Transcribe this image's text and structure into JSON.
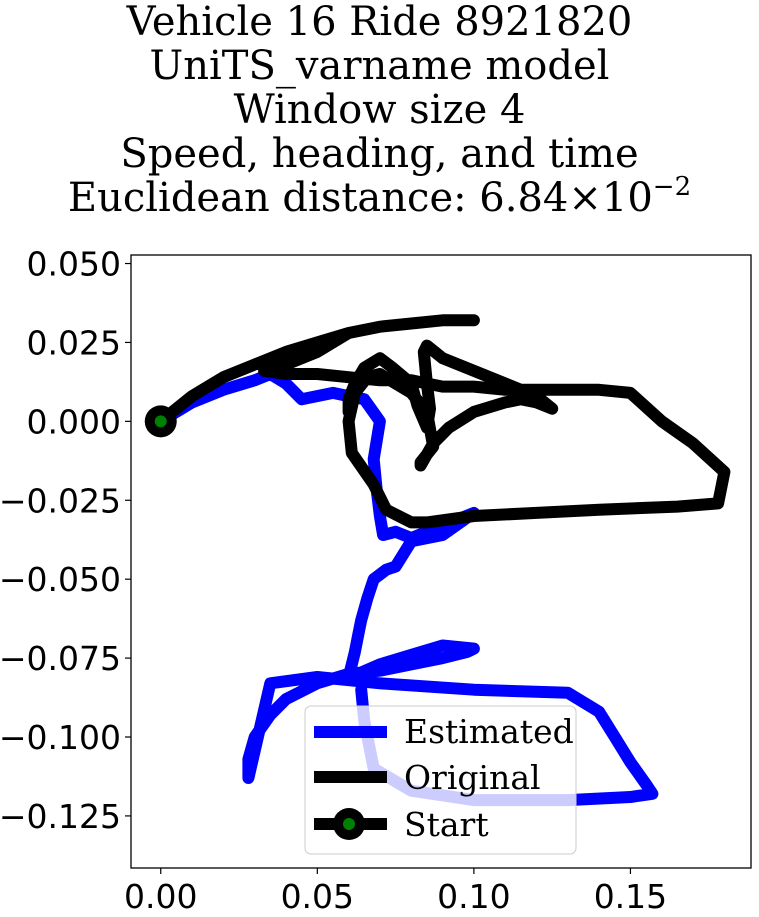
{
  "chart_data": {
    "type": "line",
    "title_lines": [
      "Vehicle 16 Ride 8921820",
      "UniTS_varname model",
      "Window size 4",
      "Speed, heading, and time"
    ],
    "title_distance_prefix": "Euclidean distance: 6.84",
    "title_distance_times": "×",
    "title_distance_base": "10",
    "title_distance_exponent": "−2",
    "xlim": [
      -0.0095,
      0.1885
    ],
    "ylim": [
      -0.1415,
      0.0527
    ],
    "x_ticks": [
      0.0,
      0.05,
      0.1,
      0.15
    ],
    "x_tick_labels": [
      "0.00",
      "0.05",
      "0.10",
      "0.15"
    ],
    "y_ticks": [
      0.05,
      0.025,
      0.0,
      -0.025,
      -0.05,
      -0.075,
      -0.1,
      -0.125
    ],
    "y_tick_labels": [
      "0.050",
      "0.025",
      "0.000",
      "−0.025",
      "−0.050",
      "−0.075",
      "−0.100",
      "−0.125"
    ],
    "grid": false,
    "legend_position": "lower-center",
    "colors": {
      "estimated": "#0000ff",
      "original": "#000000",
      "start_marker_fill": "#008000",
      "start_marker_edge": "#000000"
    },
    "series": [
      {
        "name": "Estimated",
        "color": "#0000ff",
        "x": [
          0.0,
          0.01,
          0.02,
          0.03,
          0.035,
          0.04,
          0.045,
          0.055,
          0.06,
          0.065,
          0.07,
          0.068,
          0.069,
          0.07,
          0.071,
          0.075,
          0.08,
          0.1,
          0.09,
          0.08,
          0.075,
          0.072,
          0.068,
          0.066,
          0.064,
          0.063,
          0.062,
          0.061,
          0.06,
          0.063,
          0.07,
          0.08,
          0.09,
          0.1,
          0.098,
          0.09,
          0.08,
          0.07,
          0.06,
          0.05,
          0.04,
          0.035,
          0.03,
          0.028,
          0.028,
          0.035,
          0.05,
          0.07,
          0.1,
          0.13,
          0.14,
          0.145,
          0.15,
          0.155,
          0.157,
          0.15,
          0.13,
          0.1,
          0.08,
          0.068,
          0.065,
          0.064
        ],
        "y": [
          0.0,
          0.006,
          0.01,
          0.013,
          0.015,
          0.012,
          0.007,
          0.009,
          0.008,
          0.007,
          0.0,
          -0.012,
          -0.022,
          -0.03,
          -0.036,
          -0.035,
          -0.037,
          -0.029,
          -0.036,
          -0.038,
          -0.046,
          -0.047,
          -0.05,
          -0.056,
          -0.063,
          -0.068,
          -0.073,
          -0.077,
          -0.081,
          -0.08,
          -0.077,
          -0.074,
          -0.071,
          -0.072,
          -0.073,
          -0.075,
          -0.077,
          -0.079,
          -0.08,
          -0.083,
          -0.088,
          -0.093,
          -0.1,
          -0.107,
          -0.113,
          -0.083,
          -0.081,
          -0.083,
          -0.085,
          -0.086,
          -0.092,
          -0.1,
          -0.108,
          -0.115,
          -0.118,
          -0.119,
          -0.12,
          -0.12,
          -0.117,
          -0.11,
          -0.095,
          -0.085
        ]
      },
      {
        "name": "Original",
        "color": "#000000",
        "x": [
          0.0,
          0.01,
          0.02,
          0.03,
          0.04,
          0.05,
          0.06,
          0.07,
          0.08,
          0.09,
          0.1,
          0.09,
          0.08,
          0.07,
          0.06,
          0.05,
          0.04,
          0.033,
          0.04,
          0.05,
          0.06,
          0.07,
          0.075,
          0.08,
          0.085,
          0.09,
          0.1,
          0.11,
          0.12,
          0.14,
          0.15,
          0.16,
          0.17,
          0.18,
          0.178,
          0.165,
          0.14,
          0.12,
          0.1,
          0.085,
          0.08,
          0.072,
          0.068,
          0.061,
          0.06,
          0.062,
          0.066,
          0.07,
          0.075,
          0.08,
          0.085,
          0.087,
          0.083,
          0.083,
          0.087,
          0.092,
          0.1,
          0.11,
          0.115,
          0.12,
          0.125,
          0.12,
          0.11,
          0.1,
          0.09,
          0.085,
          0.084,
          0.085,
          0.086,
          0.085,
          0.082,
          0.08,
          0.074,
          0.07,
          0.065,
          0.062,
          0.06,
          0.06
        ],
        "y": [
          0.0,
          0.008,
          0.014,
          0.018,
          0.022,
          0.025,
          0.028,
          0.03,
          0.031,
          0.032,
          0.032,
          0.032,
          0.031,
          0.03,
          0.028,
          0.022,
          0.018,
          0.016,
          0.015,
          0.015,
          0.014,
          0.013,
          0.013,
          0.013,
          0.012,
          0.011,
          0.011,
          0.01,
          0.01,
          0.01,
          0.009,
          0.0,
          -0.007,
          -0.016,
          -0.026,
          -0.027,
          -0.028,
          -0.029,
          -0.03,
          -0.032,
          -0.032,
          -0.028,
          -0.02,
          -0.01,
          0.0,
          0.009,
          0.014,
          0.015,
          0.012,
          0.009,
          0.003,
          -0.008,
          -0.013,
          -0.014,
          -0.007,
          -0.002,
          0.003,
          0.006,
          0.007,
          0.006,
          0.004,
          0.008,
          0.012,
          0.016,
          0.02,
          0.024,
          0.022,
          0.012,
          0.004,
          -0.002,
          0.005,
          0.012,
          0.017,
          0.02,
          0.017,
          0.012,
          0.007,
          0.003
        ]
      },
      {
        "name": "Start",
        "x": [
          0.0
        ],
        "y": [
          0.0
        ]
      }
    ]
  }
}
